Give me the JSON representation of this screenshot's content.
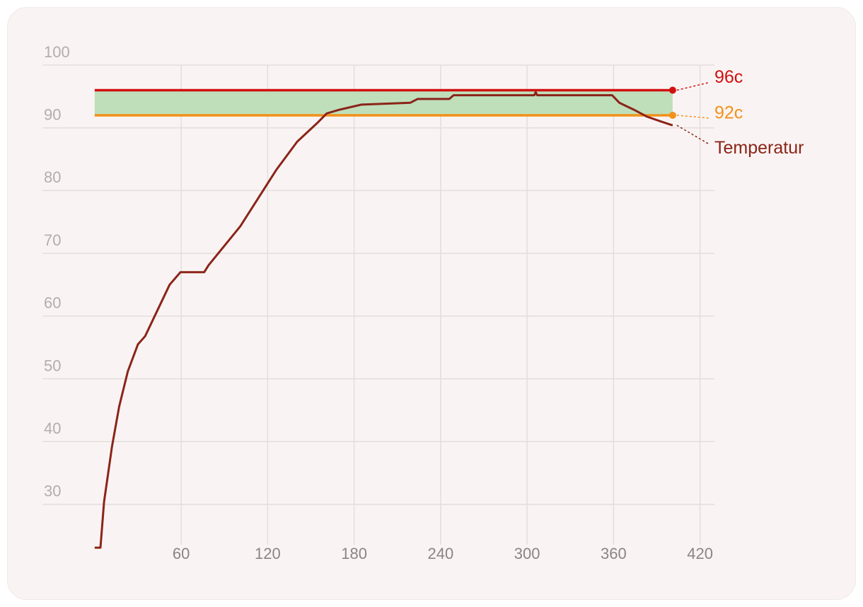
{
  "chart_data": {
    "type": "line",
    "xlim": [
      -36,
      430
    ],
    "ylim": [
      23,
      100
    ],
    "xticks": [
      60,
      120,
      180,
      240,
      300,
      360,
      420
    ],
    "yticks": [
      30,
      40,
      50,
      60,
      70,
      80,
      90,
      100
    ],
    "grid": true,
    "band_color": "#bfdfbb",
    "series": [
      {
        "name": "Temperatur",
        "color": "#8b2419",
        "x": [
          0,
          4,
          6.5,
          12,
          17,
          23,
          30,
          35,
          52,
          59.5,
          76,
          79,
          101,
          116,
          126,
          140.5,
          155,
          161,
          170,
          185,
          219,
          224,
          246,
          249,
          278,
          305,
          306,
          307,
          359,
          364,
          374,
          383,
          393,
          401
        ],
        "values": [
          23.1,
          23.1,
          30.4,
          39.2,
          45.6,
          51.2,
          55.5,
          56.8,
          65,
          67,
          67,
          68.1,
          74.3,
          79.7,
          83.3,
          87.8,
          90.9,
          92.3,
          92.9,
          93.7,
          94,
          94.6,
          94.6,
          95.2,
          95.2,
          95.2,
          95.7,
          95.2,
          95.2,
          94,
          92.9,
          91.8,
          91,
          90.4
        ]
      },
      {
        "name": "96c",
        "color": "#d11010",
        "x": [
          0,
          401
        ],
        "values": [
          96,
          96
        ]
      },
      {
        "name": "92c",
        "color": "#f39119",
        "x": [
          0,
          401
        ],
        "values": [
          92,
          92
        ]
      }
    ]
  }
}
